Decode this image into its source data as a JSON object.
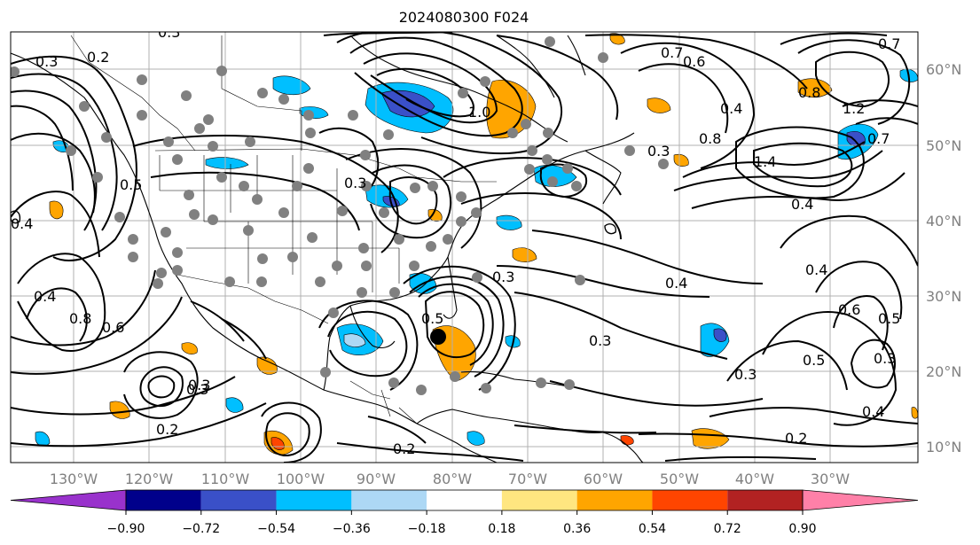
{
  "title": "2024080300 F024",
  "lon_labels": [
    "130°W",
    "120°W",
    "110°W",
    "100°W",
    "90°W",
    "80°W",
    "70°W",
    "60°W",
    "50°W",
    "40°W",
    "30°W"
  ],
  "lat_labels": [
    "60°N",
    "50°N",
    "40°N",
    "30°N",
    "20°N",
    "10°N"
  ],
  "contour_labels": [
    "0.3",
    "0.2",
    "0.3",
    "0.7",
    "0.7",
    "0.8",
    "1.0",
    "0.8",
    "1.2",
    "1.4",
    "0.4",
    "0.3",
    "0.3",
    "0.5",
    "0.4",
    "0.6",
    "0.4",
    "0.8",
    "0.3",
    "0.3",
    "0.3",
    "0.2",
    "0.2",
    "0.3",
    "0.4",
    "0.6",
    "0.5",
    "0.5",
    "0.3",
    "0.4",
    "0.2",
    "0.4",
    "0.3",
    "0.5",
    "0.6",
    "0.4",
    "0.7"
  ],
  "colorbar": {
    "ticks": [
      "−0.90",
      "−0.72",
      "−0.54",
      "−0.36",
      "−0.18",
      "0.18",
      "0.36",
      "0.54",
      "0.72",
      "0.90"
    ],
    "colors": [
      "#9932cc",
      "#00008b",
      "#3a50c8",
      "#00bfff",
      "#add8f5",
      "#ffffff",
      "#ffe680",
      "#ffa500",
      "#ff4500",
      "#b22222",
      "#ff80a8"
    ]
  }
}
